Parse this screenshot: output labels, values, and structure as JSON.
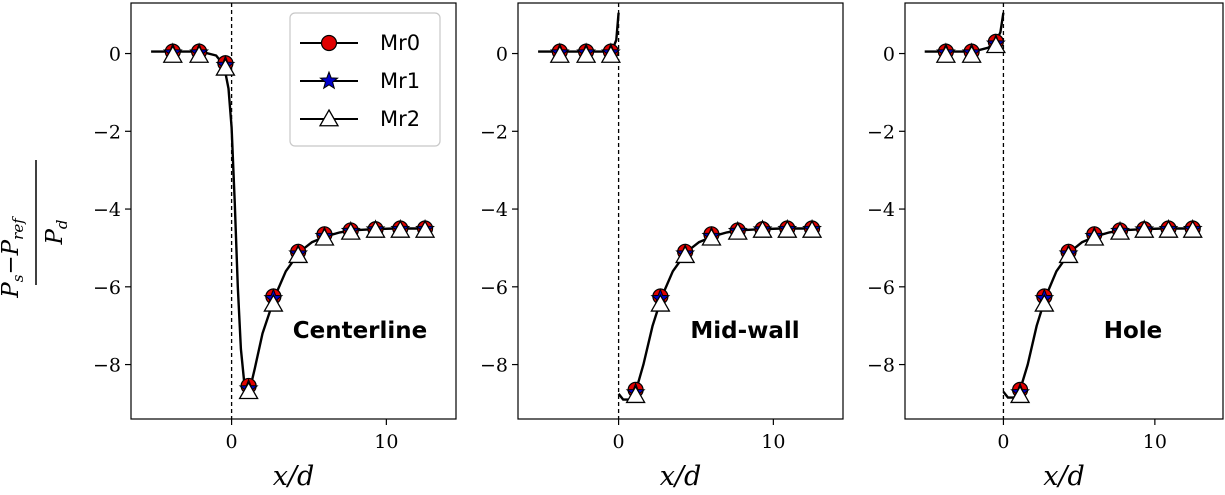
{
  "chart_data": [
    {
      "type": "line",
      "panel_label": "Centerline",
      "xlabel": "x/d",
      "ylabel": "P_s - P_ref / P_d",
      "xlim": [
        -6.5,
        14.5
      ],
      "ylim": [
        -9.4,
        1.3
      ],
      "xticks": [
        0,
        10
      ],
      "yticks": [
        0,
        -2,
        -4,
        -6,
        -8
      ],
      "reference_line_x": 0,
      "legend_position": "top-right",
      "line": {
        "x": [
          -5.2,
          -4.0,
          -2.0,
          -1.0,
          -0.5,
          -0.2,
          0.0,
          0.2,
          0.4,
          0.6,
          0.8,
          1.0,
          1.2,
          1.5,
          2.0,
          2.8,
          3.5,
          4.4,
          5.2,
          6.1,
          7.0,
          7.7,
          9.0,
          10.5,
          12.5
        ],
        "y": [
          0.05,
          0.05,
          0.05,
          -0.05,
          -0.3,
          -0.9,
          -1.9,
          -3.8,
          -6.0,
          -7.6,
          -8.4,
          -8.7,
          -8.6,
          -8.1,
          -7.2,
          -6.25,
          -5.6,
          -5.1,
          -4.85,
          -4.7,
          -4.6,
          -4.55,
          -4.52,
          -4.5,
          -4.5
        ]
      },
      "series": [
        {
          "name": "Mr0",
          "marker": "circle",
          "color": "#e00000",
          "x": [
            -3.8,
            -2.1,
            -0.4,
            1.1,
            2.7,
            4.3,
            6.0,
            7.7,
            9.3,
            10.9,
            12.5
          ],
          "y": [
            0.05,
            0.05,
            -0.25,
            -8.55,
            -6.25,
            -5.1,
            -4.65,
            -4.55,
            -4.52,
            -4.5,
            -4.5
          ]
        },
        {
          "name": "Mr1",
          "marker": "star",
          "color": "#0000cc",
          "x": [
            -3.8,
            -2.1,
            -0.4,
            1.1,
            2.7,
            4.3,
            6.0,
            7.7,
            9.3,
            10.9,
            12.5
          ],
          "y": [
            0.02,
            0.02,
            -0.3,
            -8.62,
            -6.3,
            -5.15,
            -4.7,
            -4.57,
            -4.53,
            -4.52,
            -4.52
          ]
        },
        {
          "name": "Mr2",
          "marker": "triangle",
          "color": "#ffffff",
          "x": [
            -3.8,
            -2.1,
            -0.4,
            1.1,
            2.7,
            4.3,
            6.0,
            7.7,
            9.3,
            10.9,
            12.5
          ],
          "y": [
            -0.05,
            -0.05,
            -0.38,
            -8.7,
            -6.45,
            -5.2,
            -4.75,
            -4.6,
            -4.55,
            -4.55,
            -4.55
          ]
        }
      ]
    },
    {
      "type": "line",
      "panel_label": "Mid-wall",
      "xlabel": "x/d",
      "xlim": [
        -6.5,
        14.5
      ],
      "ylim": [
        -9.4,
        1.3
      ],
      "xticks": [
        0,
        10
      ],
      "yticks": [
        0,
        -2,
        -4,
        -6,
        -8
      ],
      "reference_line_x": 0,
      "line_pre": {
        "x": [
          -5.2,
          -4.0,
          -2.0,
          -1.0,
          -0.4,
          -0.15,
          0.0
        ],
        "y": [
          0.05,
          0.05,
          0.05,
          0.05,
          0.1,
          0.35,
          1.05
        ]
      },
      "line": {
        "x": [
          0.0,
          0.3,
          0.7,
          1.1,
          1.6,
          2.2,
          2.8,
          3.5,
          4.4,
          5.2,
          6.1,
          7.0,
          7.7,
          9.0,
          10.5,
          12.5
        ],
        "y": [
          -8.75,
          -8.9,
          -8.9,
          -8.7,
          -8.0,
          -7.0,
          -6.25,
          -5.6,
          -5.1,
          -4.85,
          -4.7,
          -4.6,
          -4.55,
          -4.52,
          -4.5,
          -4.5
        ]
      },
      "series": [
        {
          "name": "Mr0",
          "marker": "circle",
          "color": "#e00000",
          "x": [
            -3.8,
            -2.1,
            -0.5,
            1.1,
            2.7,
            4.3,
            6.0,
            7.7,
            9.3,
            10.9,
            12.5
          ],
          "y": [
            0.05,
            0.05,
            0.05,
            -8.65,
            -6.25,
            -5.1,
            -4.65,
            -4.55,
            -4.52,
            -4.5,
            -4.5
          ]
        },
        {
          "name": "Mr1",
          "marker": "star",
          "color": "#0000cc",
          "x": [
            -3.8,
            -2.1,
            -0.5,
            1.1,
            2.7,
            4.3,
            6.0,
            7.7,
            9.3,
            10.9,
            12.5
          ],
          "y": [
            0.02,
            0.02,
            0.02,
            -8.72,
            -6.3,
            -5.15,
            -4.7,
            -4.57,
            -4.53,
            -4.52,
            -4.52
          ]
        },
        {
          "name": "Mr2",
          "marker": "triangle",
          "color": "#ffffff",
          "x": [
            -3.8,
            -2.1,
            -0.5,
            1.1,
            2.7,
            4.3,
            6.0,
            7.7,
            9.3,
            10.9,
            12.5
          ],
          "y": [
            -0.05,
            -0.05,
            -0.05,
            -8.8,
            -6.45,
            -5.2,
            -4.75,
            -4.6,
            -4.55,
            -4.55,
            -4.55
          ]
        }
      ]
    },
    {
      "type": "line",
      "panel_label": "Hole",
      "xlabel": "x/d",
      "xlim": [
        -6.5,
        14.5
      ],
      "ylim": [
        -9.4,
        1.3
      ],
      "xticks": [
        0,
        10
      ],
      "yticks": [
        0,
        -2,
        -4,
        -6,
        -8
      ],
      "reference_line_x": 0,
      "line_pre": {
        "x": [
          -5.2,
          -4.0,
          -2.0,
          -1.0,
          -0.5,
          -0.2,
          0.0
        ],
        "y": [
          0.05,
          0.05,
          0.05,
          0.15,
          0.3,
          0.55,
          1.05
        ]
      },
      "line": {
        "x": [
          0.0,
          0.3,
          0.7,
          1.1,
          1.6,
          2.2,
          2.8,
          3.5,
          4.4,
          5.2,
          6.1,
          7.0,
          7.7,
          9.0,
          10.5,
          12.5
        ],
        "y": [
          -8.7,
          -8.85,
          -8.85,
          -8.65,
          -8.0,
          -7.0,
          -6.25,
          -5.6,
          -5.1,
          -4.85,
          -4.7,
          -4.6,
          -4.55,
          -4.52,
          -4.5,
          -4.5
        ]
      },
      "series": [
        {
          "name": "Mr0",
          "marker": "circle",
          "color": "#e00000",
          "x": [
            -3.8,
            -2.1,
            -0.5,
            1.1,
            2.7,
            4.3,
            6.0,
            7.7,
            9.3,
            10.9,
            12.5
          ],
          "y": [
            0.05,
            0.05,
            0.3,
            -8.65,
            -6.25,
            -5.1,
            -4.65,
            -4.55,
            -4.52,
            -4.5,
            -4.5
          ]
        },
        {
          "name": "Mr1",
          "marker": "star",
          "color": "#0000cc",
          "x": [
            -3.8,
            -2.1,
            -0.5,
            1.1,
            2.7,
            4.3,
            6.0,
            7.7,
            9.3,
            10.9,
            12.5
          ],
          "y": [
            0.02,
            0.02,
            0.25,
            -8.72,
            -6.3,
            -5.15,
            -4.7,
            -4.57,
            -4.53,
            -4.52,
            -4.52
          ]
        },
        {
          "name": "Mr2",
          "marker": "triangle",
          "color": "#ffffff",
          "x": [
            -3.8,
            -2.1,
            -0.5,
            1.1,
            2.7,
            4.3,
            6.0,
            7.7,
            9.3,
            10.9,
            12.5
          ],
          "y": [
            -0.05,
            -0.05,
            0.2,
            -8.8,
            -6.45,
            -5.2,
            -4.75,
            -4.6,
            -4.55,
            -4.55,
            -4.55
          ]
        }
      ]
    }
  ],
  "legend": {
    "entries": [
      {
        "label": "Mr0",
        "marker": "circle",
        "color": "#e00000"
      },
      {
        "label": "Mr1",
        "marker": "star",
        "color": "#0000cc"
      },
      {
        "label": "Mr2",
        "marker": "triangle",
        "color": "#ffffff"
      }
    ]
  }
}
